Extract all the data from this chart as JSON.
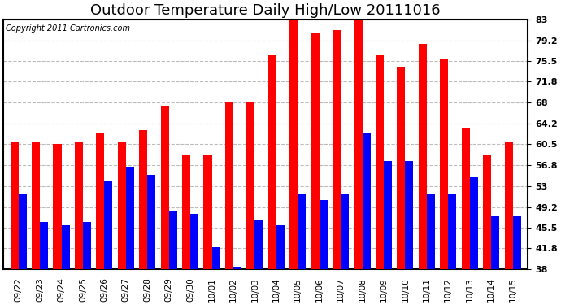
{
  "title": "Outdoor Temperature Daily High/Low 20111016",
  "copyright": "Copyright 2011 Cartronics.com",
  "dates": [
    "09/22",
    "09/23",
    "09/24",
    "09/25",
    "09/26",
    "09/27",
    "09/28",
    "09/29",
    "09/30",
    "10/01",
    "10/02",
    "10/03",
    "10/04",
    "10/05",
    "10/06",
    "10/07",
    "10/08",
    "10/09",
    "10/10",
    "10/11",
    "10/12",
    "10/13",
    "10/14",
    "10/15"
  ],
  "highs": [
    61.0,
    61.0,
    60.5,
    61.0,
    62.5,
    61.0,
    63.0,
    67.5,
    58.5,
    58.5,
    68.0,
    68.0,
    76.5,
    83.0,
    80.5,
    81.0,
    83.0,
    76.5,
    74.5,
    78.5,
    76.0,
    63.5,
    58.5,
    61.0
  ],
  "lows": [
    51.5,
    46.5,
    46.0,
    46.5,
    54.0,
    56.5,
    55.0,
    48.5,
    48.0,
    42.0,
    38.5,
    47.0,
    46.0,
    51.5,
    50.5,
    51.5,
    62.5,
    57.5,
    57.5,
    51.5,
    51.5,
    54.5,
    47.5,
    47.5
  ],
  "high_color": "#ff0000",
  "low_color": "#0000ff",
  "bg_color": "#ffffff",
  "grid_color": "#bbbbbb",
  "ylim": [
    38.0,
    83.0
  ],
  "yticks": [
    38.0,
    41.8,
    45.5,
    49.2,
    53.0,
    56.8,
    60.5,
    64.2,
    68.0,
    71.8,
    75.5,
    79.2,
    83.0
  ],
  "title_fontsize": 13,
  "copyright_fontsize": 7,
  "bar_width": 0.38
}
